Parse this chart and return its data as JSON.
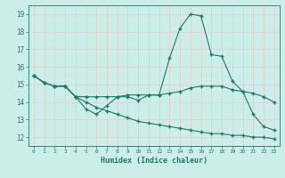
{
  "xlabel": "Humidex (Indice chaleur)",
  "bg_color": "#cceee8",
  "grid_color": "#aaddcc",
  "line_color": "#1a7a6e",
  "xlim": [
    -0.5,
    23.5
  ],
  "ylim": [
    11.5,
    19.5
  ],
  "xticks": [
    0,
    1,
    2,
    3,
    4,
    5,
    6,
    7,
    8,
    9,
    10,
    11,
    12,
    13,
    14,
    15,
    16,
    17,
    18,
    19,
    20,
    21,
    22,
    23
  ],
  "yticks": [
    12,
    13,
    14,
    15,
    16,
    17,
    18,
    19
  ],
  "series1_x": [
    0,
    1,
    2,
    3,
    4,
    5,
    6,
    7,
    8,
    9,
    10,
    11,
    12,
    13,
    14,
    15,
    16,
    17,
    18,
    19,
    20,
    21,
    22,
    23
  ],
  "series1_y": [
    15.5,
    15.1,
    14.9,
    14.9,
    14.3,
    13.6,
    13.3,
    13.8,
    14.3,
    14.3,
    14.1,
    14.4,
    14.4,
    16.5,
    18.2,
    19.0,
    18.9,
    16.7,
    16.6,
    15.2,
    14.6,
    13.3,
    12.6,
    12.4
  ],
  "series2_x": [
    0,
    1,
    2,
    3,
    4,
    5,
    6,
    7,
    8,
    9,
    10,
    11,
    12,
    13,
    14,
    15,
    16,
    17,
    18,
    19,
    20,
    21,
    22,
    23
  ],
  "series2_y": [
    15.5,
    15.1,
    14.9,
    14.9,
    14.3,
    14.3,
    14.3,
    14.3,
    14.3,
    14.4,
    14.4,
    14.4,
    14.4,
    14.5,
    14.6,
    14.8,
    14.9,
    14.9,
    14.9,
    14.7,
    14.6,
    14.5,
    14.3,
    14.0
  ],
  "series3_x": [
    0,
    1,
    2,
    3,
    4,
    5,
    6,
    7,
    8,
    9,
    10,
    11,
    12,
    13,
    14,
    15,
    16,
    17,
    18,
    19,
    20,
    21,
    22,
    23
  ],
  "series3_y": [
    15.5,
    15.1,
    14.9,
    14.9,
    14.3,
    14.0,
    13.7,
    13.5,
    13.3,
    13.1,
    12.9,
    12.8,
    12.7,
    12.6,
    12.5,
    12.4,
    12.3,
    12.2,
    12.2,
    12.1,
    12.1,
    12.0,
    12.0,
    11.9
  ]
}
